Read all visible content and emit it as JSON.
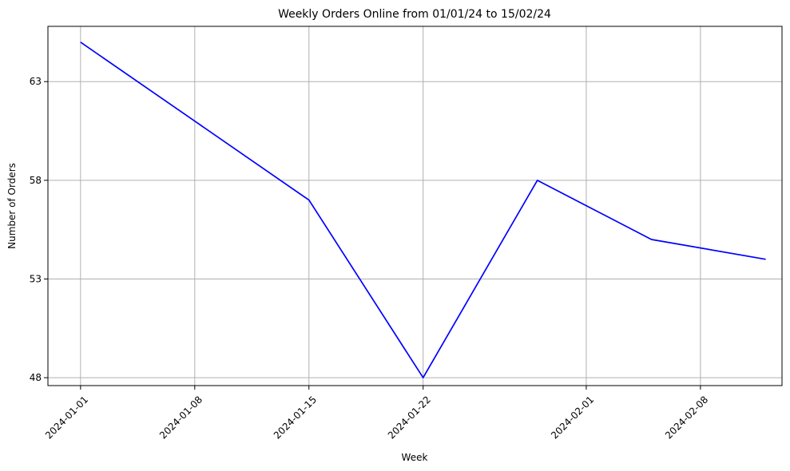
{
  "chart_data": {
    "type": "line",
    "title": "Weekly Orders Online from 01/01/24 to 15/02/24",
    "xlabel": "Week",
    "ylabel": "Number of Orders",
    "x_ticks": [
      "2024-01-01",
      "2024-01-08",
      "2024-01-15",
      "2024-01-22",
      "2024-02-01",
      "2024-02-08"
    ],
    "y_ticks": [
      48,
      53,
      58,
      63
    ],
    "xlim": [
      "2023-12-30",
      "2024-02-13"
    ],
    "ylim": [
      47.6,
      65.8
    ],
    "grid": true,
    "series": [
      {
        "color": "#0000ff",
        "x": [
          "2024-01-01",
          "2024-01-08",
          "2024-01-15",
          "2024-01-22",
          "2024-01-29",
          "2024-02-05",
          "2024-02-12"
        ],
        "y": [
          65,
          61,
          57,
          48,
          58,
          55,
          54
        ]
      }
    ]
  }
}
